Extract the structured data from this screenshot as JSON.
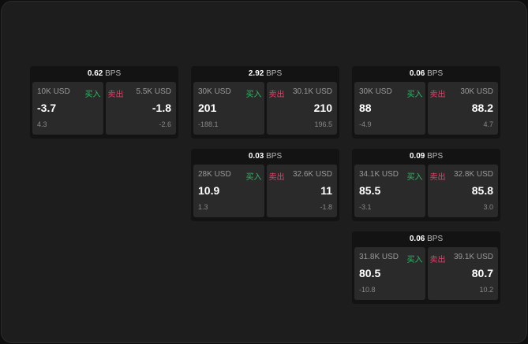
{
  "labels": {
    "bps": "BPS",
    "buy": "买入",
    "sell": "卖出"
  },
  "colors": {
    "buy": "#2fb866",
    "sell": "#e0436b"
  },
  "cards": [
    {
      "bps": "0.62",
      "bid_size": "10K USD",
      "bid": "-3.7",
      "bid_change": "4.3",
      "ask_size": "5.5K USD",
      "ask": "-1.8",
      "ask_change": "-2.6"
    },
    {
      "bps": "2.92",
      "bid_size": "30K USD",
      "bid": "201",
      "bid_change": "-188.1",
      "ask_size": "30.1K USD",
      "ask": "210",
      "ask_change": "196.5"
    },
    {
      "bps": "0.06",
      "bid_size": "30K USD",
      "bid": "88",
      "bid_change": "-4.9",
      "ask_size": "30K USD",
      "ask": "88.2",
      "ask_change": "4.7"
    },
    {
      "bps": "0.03",
      "bid_size": "28K USD",
      "bid": "10.9",
      "bid_change": "1.3",
      "ask_size": "32.6K USD",
      "ask": "11",
      "ask_change": "-1.8"
    },
    {
      "bps": "0.09",
      "bid_size": "34.1K USD",
      "bid": "85.5",
      "bid_change": "-3.1",
      "ask_size": "32.8K USD",
      "ask": "85.8",
      "ask_change": "3.0"
    },
    {
      "bps": "0.06",
      "bid_size": "31.8K USD",
      "bid": "80.5",
      "bid_change": "-10.8",
      "ask_size": "39.1K USD",
      "ask": "80.7",
      "ask_change": "10.2"
    }
  ]
}
